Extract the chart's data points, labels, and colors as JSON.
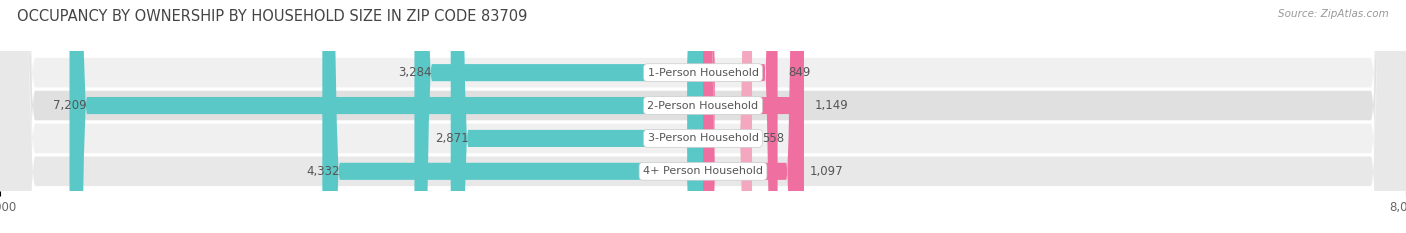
{
  "title": "OCCUPANCY BY OWNERSHIP BY HOUSEHOLD SIZE IN ZIP CODE 83709",
  "source": "Source: ZipAtlas.com",
  "categories": [
    "1-Person Household",
    "2-Person Household",
    "3-Person Household",
    "4+ Person Household"
  ],
  "owner_values": [
    3284,
    7209,
    2871,
    4332
  ],
  "renter_values": [
    849,
    1149,
    558,
    1097
  ],
  "owner_color": "#5BC8C8",
  "renter_color_dark": "#EE6FA0",
  "renter_color_light": "#F4A8C0",
  "renter_colors": [
    "#EE6FA0",
    "#EE6FA0",
    "#F4A8C0",
    "#EE6FA0"
  ],
  "owner_color_row2": "#3AAFAF",
  "row_bg_colors": [
    "#F0F0F0",
    "#E0E0E0",
    "#F0F0F0",
    "#E8E8E8"
  ],
  "axis_max": 8000,
  "bar_height": 0.52,
  "label_fontsize": 8.5,
  "category_fontsize": 8.0,
  "title_fontsize": 10.5,
  "legend_fontsize": 8.5,
  "source_fontsize": 7.5,
  "tick_fontsize": 8.5,
  "background_color": "#FFFFFF",
  "label_color": "#555555",
  "title_color": "#444444"
}
